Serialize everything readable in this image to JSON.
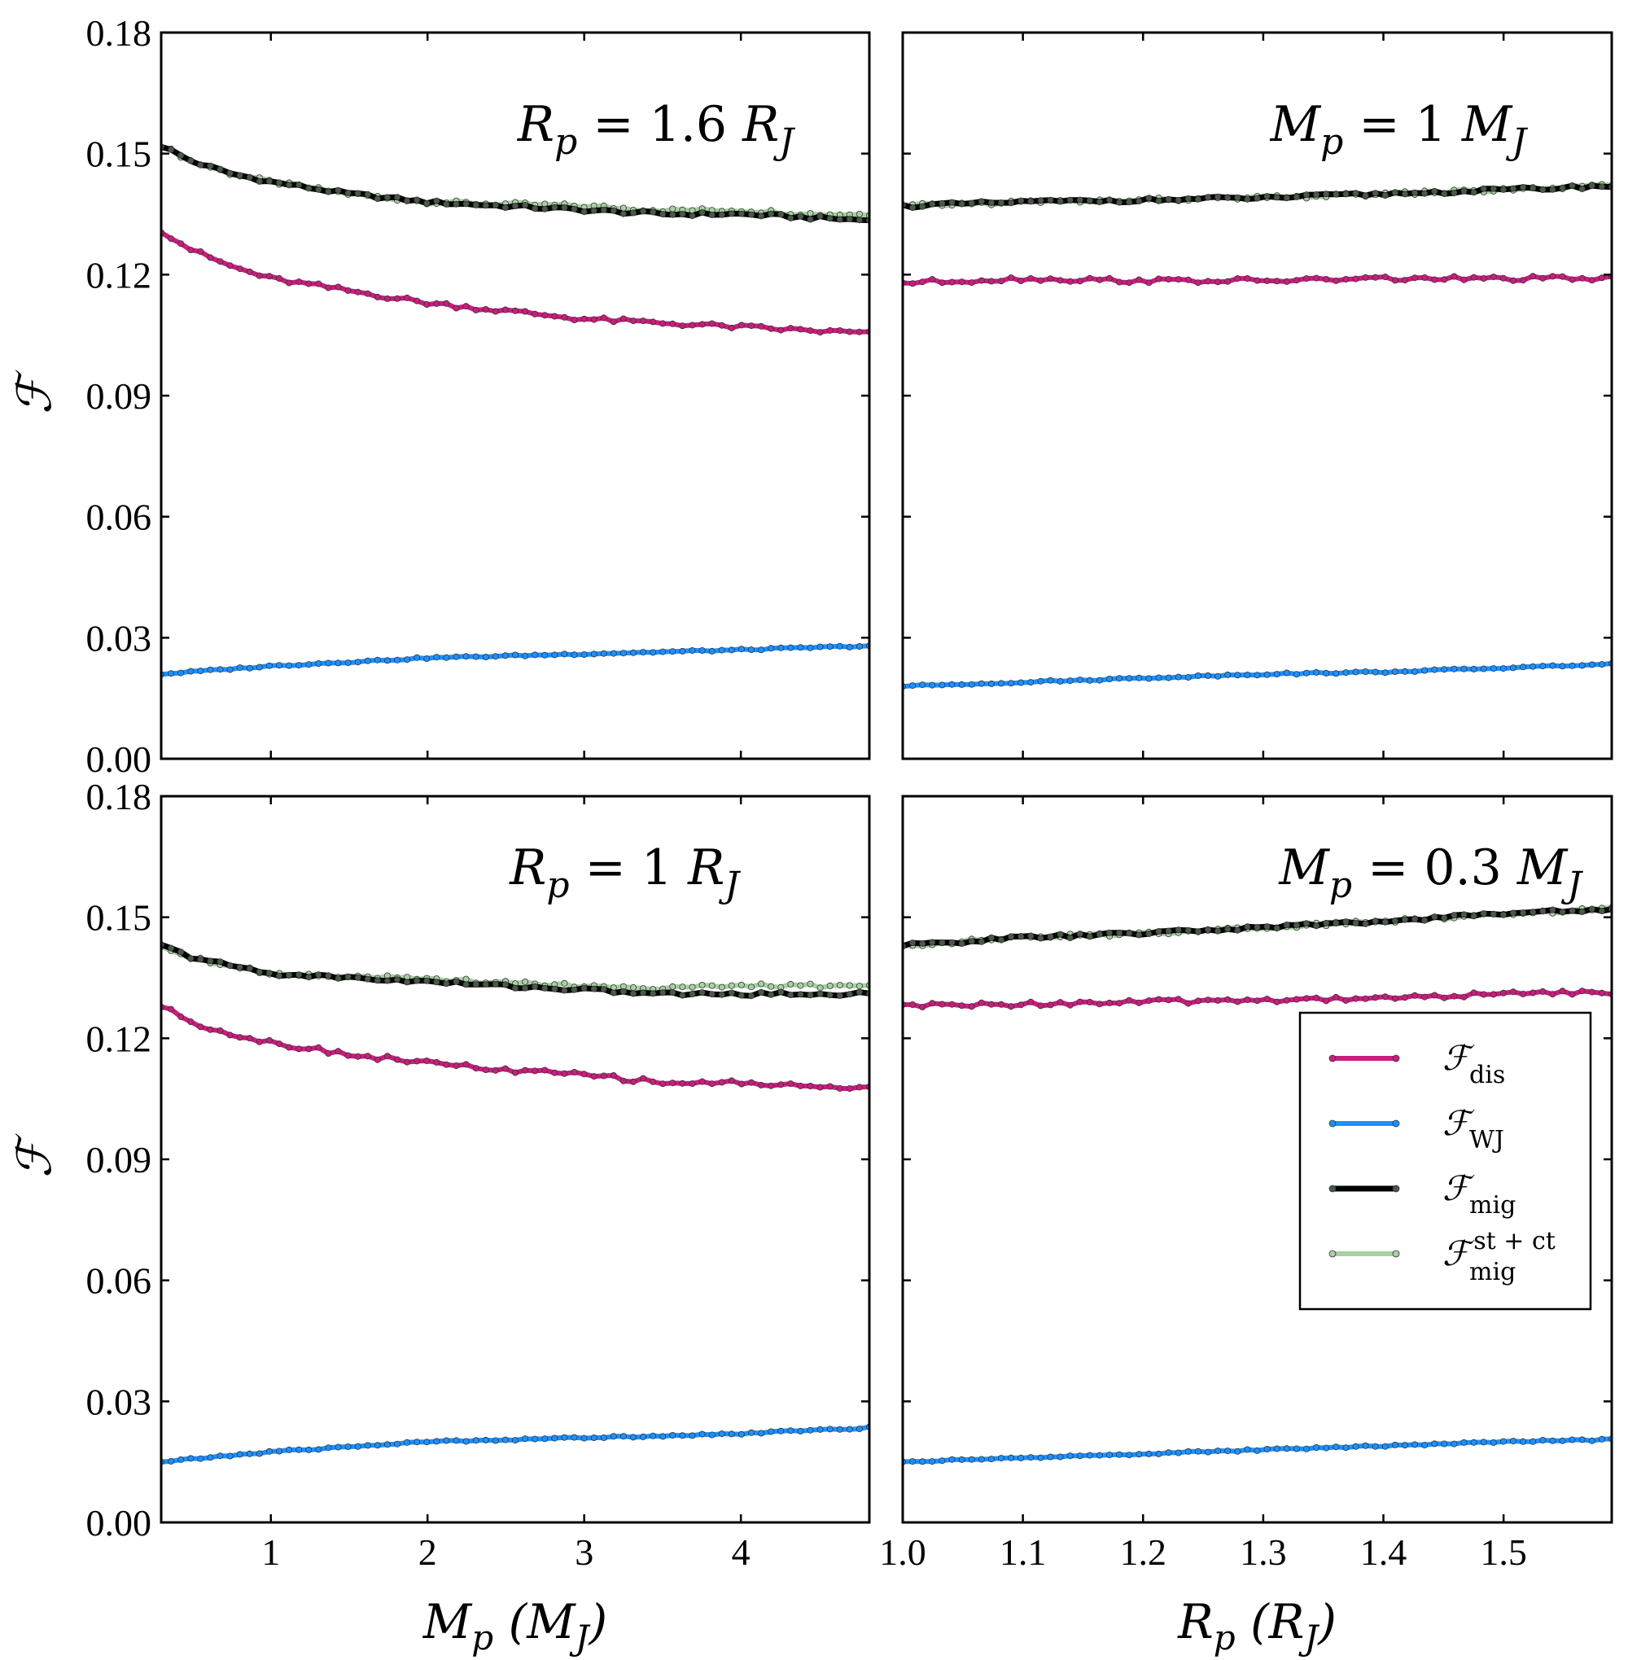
{
  "chart_data": [
    {
      "type": "line",
      "panel": "top-left",
      "annotation": "R_p = 1.6 R_J",
      "xlabel": "",
      "ylabel": "ℱ",
      "xlim": [
        0.3,
        4.82
      ],
      "ylim": [
        0.0,
        0.18
      ],
      "xticks": [
        1,
        2,
        3,
        4
      ],
      "yticks": [
        "0.00",
        "0.03",
        "0.06",
        "0.09",
        "0.12",
        "0.15",
        "0.18"
      ],
      "show_xtick_labels": false,
      "show_ytick_labels": true,
      "series": [
        {
          "name": "F_dis",
          "x": [
            0.3,
            0.5,
            0.75,
            1.0,
            1.5,
            2.0,
            2.5,
            3.0,
            3.5,
            4.0,
            4.5,
            4.82
          ],
          "values": [
            0.131,
            0.126,
            0.122,
            0.119,
            0.116,
            0.113,
            0.111,
            0.109,
            0.108,
            0.107,
            0.106,
            0.1055
          ]
        },
        {
          "name": "F_WJ",
          "x": [
            0.3,
            1.0,
            2.0,
            3.0,
            4.0,
            4.82
          ],
          "values": [
            0.021,
            0.023,
            0.025,
            0.026,
            0.027,
            0.028
          ]
        },
        {
          "name": "F_mig",
          "x": [
            0.3,
            0.5,
            0.75,
            1.0,
            1.5,
            2.0,
            2.5,
            3.0,
            3.5,
            4.0,
            4.5,
            4.82
          ],
          "values": [
            0.152,
            0.148,
            0.145,
            0.143,
            0.14,
            0.138,
            0.137,
            0.136,
            0.135,
            0.135,
            0.134,
            0.1335
          ]
        },
        {
          "name": "F_mig^st+ct",
          "x": [
            0.3,
            0.5,
            0.75,
            1.0,
            1.5,
            2.0,
            2.5,
            3.0,
            3.5,
            4.0,
            4.5,
            4.82
          ],
          "values": [
            0.152,
            0.148,
            0.145,
            0.143,
            0.14,
            0.138,
            0.1375,
            0.137,
            0.136,
            0.136,
            0.135,
            0.135
          ]
        }
      ]
    },
    {
      "type": "line",
      "panel": "top-right",
      "annotation": "M_p = 1 M_J",
      "xlabel": "",
      "ylabel": "",
      "xlim": [
        1.0,
        1.59
      ],
      "ylim": [
        0.0,
        0.18
      ],
      "xticks": [
        1.0,
        1.1,
        1.2,
        1.3,
        1.4,
        1.5
      ],
      "yticks": [
        "0.00",
        "0.03",
        "0.06",
        "0.09",
        "0.12",
        "0.15",
        "0.18"
      ],
      "show_xtick_labels": false,
      "show_ytick_labels": false,
      "series": [
        {
          "name": "F_dis",
          "x": [
            1.0,
            1.1,
            1.2,
            1.3,
            1.4,
            1.5,
            1.59
          ],
          "values": [
            0.118,
            0.119,
            0.1185,
            0.1185,
            0.119,
            0.119,
            0.119
          ]
        },
        {
          "name": "F_WJ",
          "x": [
            1.0,
            1.1,
            1.2,
            1.3,
            1.4,
            1.5,
            1.59
          ],
          "values": [
            0.018,
            0.019,
            0.02,
            0.021,
            0.0215,
            0.0225,
            0.0235
          ]
        },
        {
          "name": "F_mig",
          "x": [
            1.0,
            1.1,
            1.2,
            1.3,
            1.4,
            1.5,
            1.59
          ],
          "values": [
            0.137,
            0.138,
            0.1385,
            0.139,
            0.14,
            0.141,
            0.142
          ]
        },
        {
          "name": "F_mig^st+ct",
          "x": [
            1.0,
            1.1,
            1.2,
            1.3,
            1.4,
            1.5,
            1.59
          ],
          "values": [
            0.137,
            0.138,
            0.1385,
            0.139,
            0.14,
            0.141,
            0.142
          ]
        }
      ]
    },
    {
      "type": "line",
      "panel": "bottom-left",
      "annotation": "R_p = 1 R_J",
      "xlabel": "M_p (M_J)",
      "ylabel": "ℱ",
      "xlim": [
        0.3,
        4.82
      ],
      "ylim": [
        0.0,
        0.18
      ],
      "xticks": [
        1,
        2,
        3,
        4
      ],
      "xtick_labels": [
        "1",
        "2",
        "3",
        "4"
      ],
      "yticks": [
        "0.00",
        "0.03",
        "0.06",
        "0.09",
        "0.12",
        "0.15",
        "0.18"
      ],
      "show_xtick_labels": true,
      "show_ytick_labels": true,
      "series": [
        {
          "name": "F_dis",
          "x": [
            0.3,
            0.5,
            0.75,
            1.0,
            1.5,
            2.0,
            2.5,
            3.0,
            3.5,
            4.0,
            4.5,
            4.82
          ],
          "values": [
            0.128,
            0.124,
            0.121,
            0.119,
            0.116,
            0.114,
            0.112,
            0.111,
            0.109,
            0.109,
            0.108,
            0.1075
          ]
        },
        {
          "name": "F_WJ",
          "x": [
            0.3,
            1.0,
            2.0,
            3.0,
            4.0,
            4.82
          ],
          "values": [
            0.015,
            0.0175,
            0.02,
            0.021,
            0.022,
            0.0235
          ]
        },
        {
          "name": "F_mig",
          "x": [
            0.3,
            0.5,
            0.75,
            1.0,
            1.5,
            2.0,
            2.5,
            3.0,
            3.5,
            4.0,
            4.5,
            4.82
          ],
          "values": [
            0.143,
            0.14,
            0.138,
            0.136,
            0.135,
            0.134,
            0.133,
            0.132,
            0.131,
            0.131,
            0.131,
            0.131
          ]
        },
        {
          "name": "F_mig^st+ct",
          "x": [
            0.3,
            0.5,
            0.75,
            1.0,
            1.5,
            2.0,
            2.5,
            3.0,
            3.5,
            4.0,
            4.5,
            4.82
          ],
          "values": [
            0.143,
            0.14,
            0.138,
            0.136,
            0.1355,
            0.1345,
            0.134,
            0.133,
            0.1325,
            0.133,
            0.133,
            0.133
          ]
        }
      ]
    },
    {
      "type": "line",
      "panel": "bottom-right",
      "annotation": "M_p = 0.3 M_J",
      "xlabel": "R_p (R_J)",
      "ylabel": "",
      "xlim": [
        1.0,
        1.59
      ],
      "ylim": [
        0.0,
        0.18
      ],
      "xticks": [
        1.0,
        1.1,
        1.2,
        1.3,
        1.4,
        1.5
      ],
      "xtick_labels": [
        "1.0",
        "1.1",
        "1.2",
        "1.3",
        "1.4",
        "1.5"
      ],
      "yticks": [
        "0.00",
        "0.03",
        "0.06",
        "0.09",
        "0.12",
        "0.15",
        "0.18"
      ],
      "show_xtick_labels": true,
      "show_ytick_labels": false,
      "legend": "center-right",
      "series": [
        {
          "name": "F_dis",
          "x": [
            1.0,
            1.1,
            1.2,
            1.3,
            1.4,
            1.5,
            1.59
          ],
          "values": [
            0.128,
            0.1285,
            0.129,
            0.1295,
            0.13,
            0.131,
            0.1315
          ]
        },
        {
          "name": "F_WJ",
          "x": [
            1.0,
            1.1,
            1.2,
            1.3,
            1.4,
            1.5,
            1.59
          ],
          "values": [
            0.015,
            0.016,
            0.017,
            0.018,
            0.019,
            0.02,
            0.0205
          ]
        },
        {
          "name": "F_mig",
          "x": [
            1.0,
            1.1,
            1.2,
            1.3,
            1.4,
            1.5,
            1.59
          ],
          "values": [
            0.143,
            0.145,
            0.146,
            0.1475,
            0.149,
            0.151,
            0.152
          ]
        },
        {
          "name": "F_mig^st+ct",
          "x": [
            1.0,
            1.1,
            1.2,
            1.3,
            1.4,
            1.5,
            1.59
          ],
          "values": [
            0.143,
            0.145,
            0.146,
            0.1475,
            0.149,
            0.151,
            0.152
          ]
        }
      ]
    }
  ],
  "legend": {
    "entries": [
      {
        "key": "F_dis",
        "base": "ℱ",
        "sub": "dis",
        "sup": "",
        "color": "#c81e7c"
      },
      {
        "key": "F_WJ",
        "base": "ℱ",
        "sub": "WJ",
        "sup": "",
        "color": "#1e90ff"
      },
      {
        "key": "F_mig",
        "base": "ℱ",
        "sub": "mig",
        "sup": "",
        "color": "#000000"
      },
      {
        "key": "F_mig^st+ct",
        "base": "ℱ",
        "sub": "mig",
        "sup": "st + ct",
        "color": "#a9cfa4"
      }
    ]
  },
  "colors": {
    "F_dis": "#c81e7c",
    "F_WJ": "#1e90ff",
    "F_mig": "#000000",
    "F_mig^st+ct": "#a9cfa4",
    "axes": "#000000",
    "background": "#ffffff"
  }
}
